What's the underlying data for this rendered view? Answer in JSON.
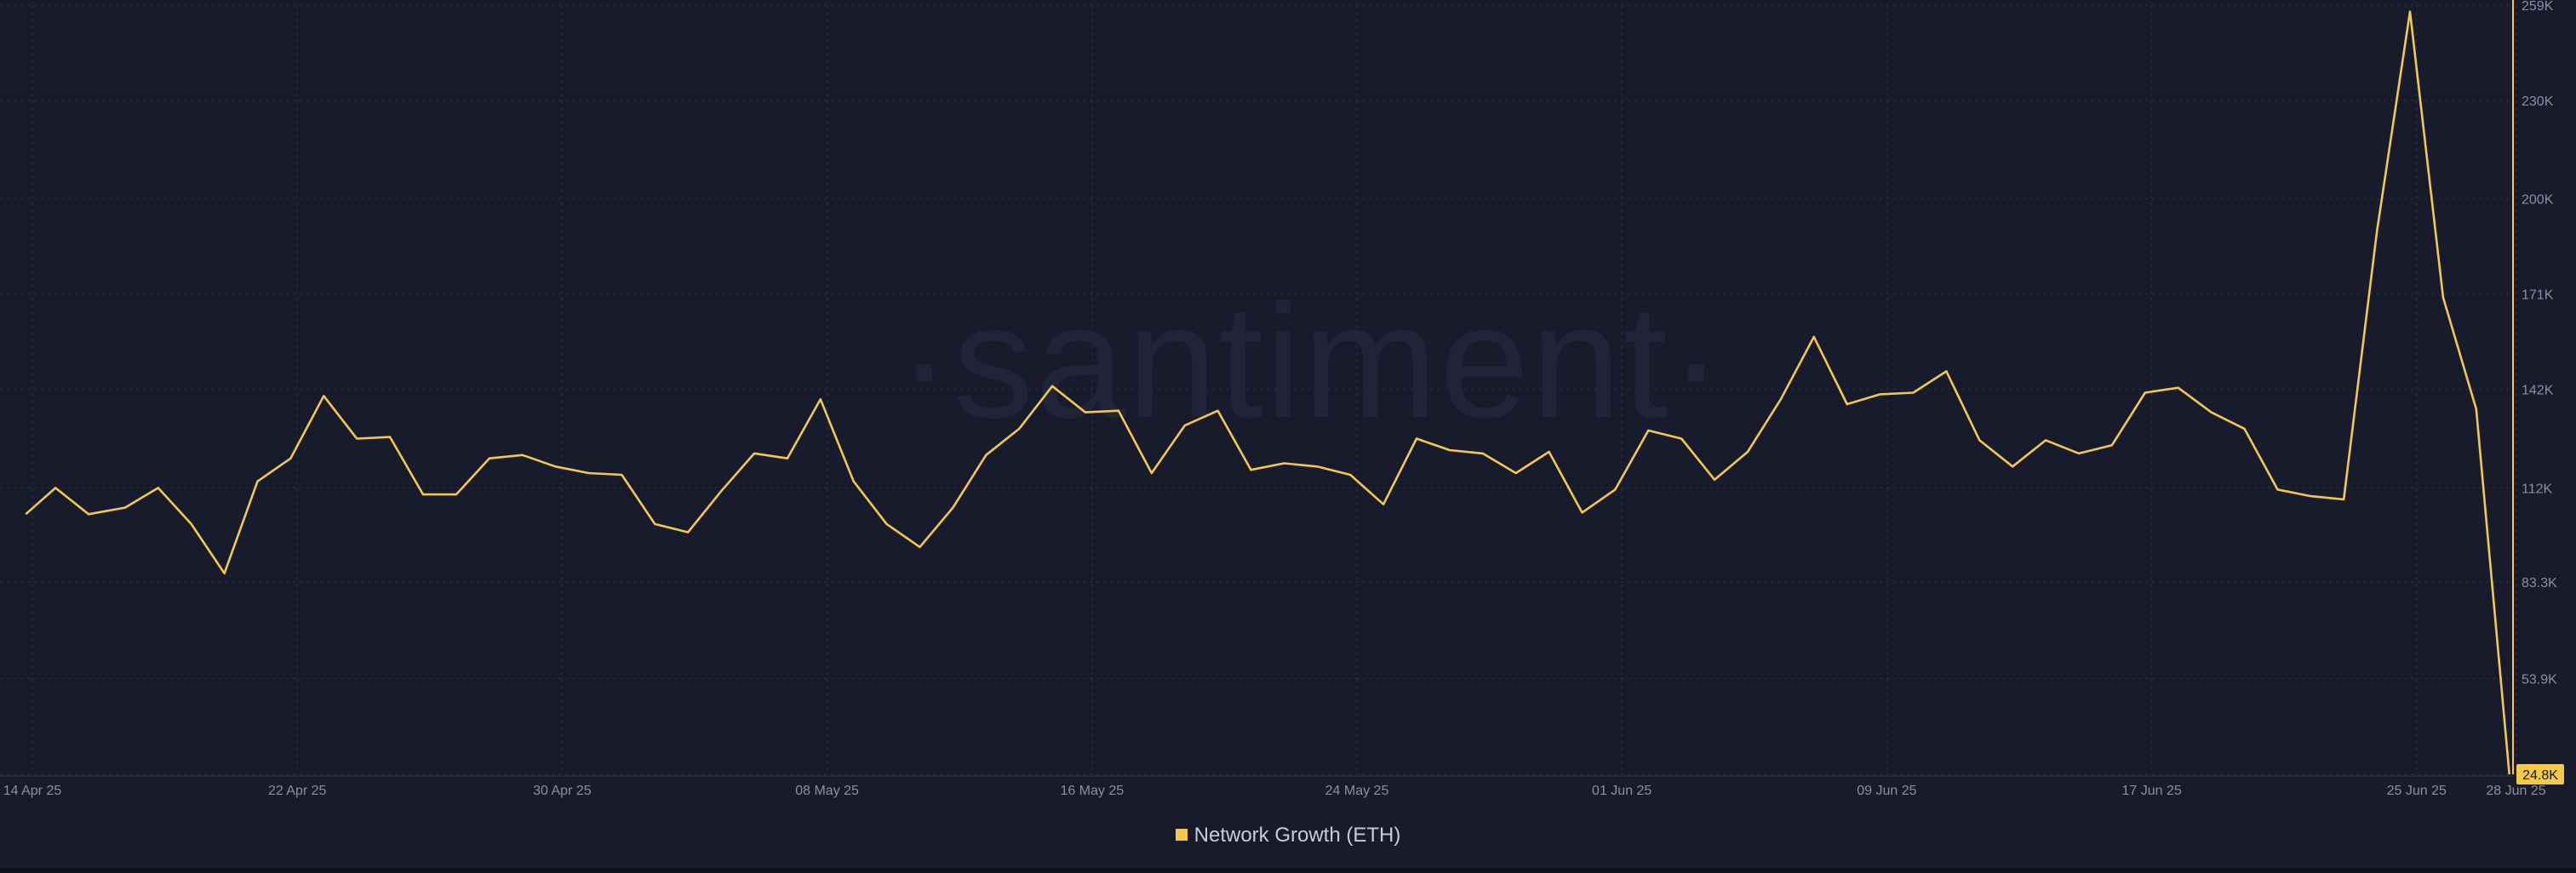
{
  "watermark": "·santiment·",
  "colors": {
    "background": "#181b2b",
    "line": "#f2c94c",
    "grid": "#262a3c",
    "axis": "#f2c94c",
    "tick_text": "#8a8fa3",
    "badge_bg": "#f2c94c",
    "badge_text": "#181b2b"
  },
  "chart_data": {
    "type": "line",
    "xlabel": "",
    "ylabel": "",
    "grid": true,
    "legend_position": "bottom-center",
    "ylim": [
      24800,
      259000
    ],
    "y_ticks": [
      24800,
      53900,
      83300,
      112000,
      142000,
      171000,
      200000,
      230000,
      259000
    ],
    "y_tick_labels": [
      "24.8K",
      "53.9K",
      "83.3K",
      "112K",
      "142K",
      "171K",
      "200K",
      "230K",
      "259K"
    ],
    "x_tick_labels": [
      "14 Apr 25",
      "22 Apr 25",
      "30 Apr 25",
      "08 May 25",
      "16 May 25",
      "24 May 25",
      "01 Jun 25",
      "09 Jun 25",
      "17 Jun 25",
      "25 Jun 25",
      "28 Jun 25"
    ],
    "x_tick_days": [
      0,
      8,
      16,
      24,
      32,
      40,
      48,
      56,
      64,
      72,
      75
    ],
    "last_value_label": "24.8K",
    "series": [
      {
        "name": "Network Growth (ETH)",
        "color": "#f2c94c",
        "points": [
          [
            -0.2,
            104000
          ],
          [
            0.7,
            112000
          ],
          [
            1.7,
            104000
          ],
          [
            2.8,
            106000
          ],
          [
            3.8,
            112000
          ],
          [
            4.8,
            101000
          ],
          [
            5.8,
            86000
          ],
          [
            6.8,
            114000
          ],
          [
            7.8,
            121000
          ],
          [
            8.8,
            140000
          ],
          [
            9.8,
            127000
          ],
          [
            10.8,
            127500
          ],
          [
            11.8,
            110000
          ],
          [
            12.8,
            110000
          ],
          [
            13.8,
            121000
          ],
          [
            14.8,
            122000
          ],
          [
            15.8,
            118500
          ],
          [
            16.8,
            116500
          ],
          [
            17.8,
            116000
          ],
          [
            18.8,
            101000
          ],
          [
            19.8,
            98500
          ],
          [
            20.8,
            111000
          ],
          [
            21.8,
            122500
          ],
          [
            22.8,
            121000
          ],
          [
            23.8,
            139000
          ],
          [
            24.8,
            114000
          ],
          [
            25.8,
            101000
          ],
          [
            26.8,
            94000
          ],
          [
            27.8,
            106000
          ],
          [
            28.8,
            122000
          ],
          [
            29.8,
            130000
          ],
          [
            30.8,
            143000
          ],
          [
            31.8,
            135000
          ],
          [
            32.8,
            135500
          ],
          [
            33.8,
            116500
          ],
          [
            34.8,
            131000
          ],
          [
            35.8,
            135500
          ],
          [
            36.8,
            117500
          ],
          [
            37.8,
            119500
          ],
          [
            38.8,
            118500
          ],
          [
            39.8,
            116000
          ],
          [
            40.8,
            107000
          ],
          [
            41.8,
            127000
          ],
          [
            42.8,
            123500
          ],
          [
            43.8,
            122500
          ],
          [
            44.8,
            116500
          ],
          [
            45.8,
            123000
          ],
          [
            46.8,
            104500
          ],
          [
            47.8,
            111500
          ],
          [
            48.8,
            129500
          ],
          [
            49.8,
            127000
          ],
          [
            50.8,
            114500
          ],
          [
            51.8,
            123000
          ],
          [
            52.8,
            139000
          ],
          [
            53.8,
            158000
          ],
          [
            54.8,
            137500
          ],
          [
            55.8,
            140500
          ],
          [
            56.8,
            141000
          ],
          [
            57.8,
            147500
          ],
          [
            58.8,
            126500
          ],
          [
            59.8,
            118500
          ],
          [
            60.8,
            126500
          ],
          [
            61.8,
            122500
          ],
          [
            62.8,
            125000
          ],
          [
            63.8,
            141000
          ],
          [
            64.8,
            142500
          ],
          [
            65.8,
            135000
          ],
          [
            66.8,
            130000
          ],
          [
            67.8,
            111500
          ],
          [
            68.8,
            109500
          ],
          [
            69.8,
            108500
          ],
          [
            70.8,
            190000
          ],
          [
            71.8,
            257000
          ],
          [
            72.8,
            170000
          ],
          [
            73.8,
            136000
          ],
          [
            74.8,
            24800
          ]
        ]
      }
    ]
  }
}
